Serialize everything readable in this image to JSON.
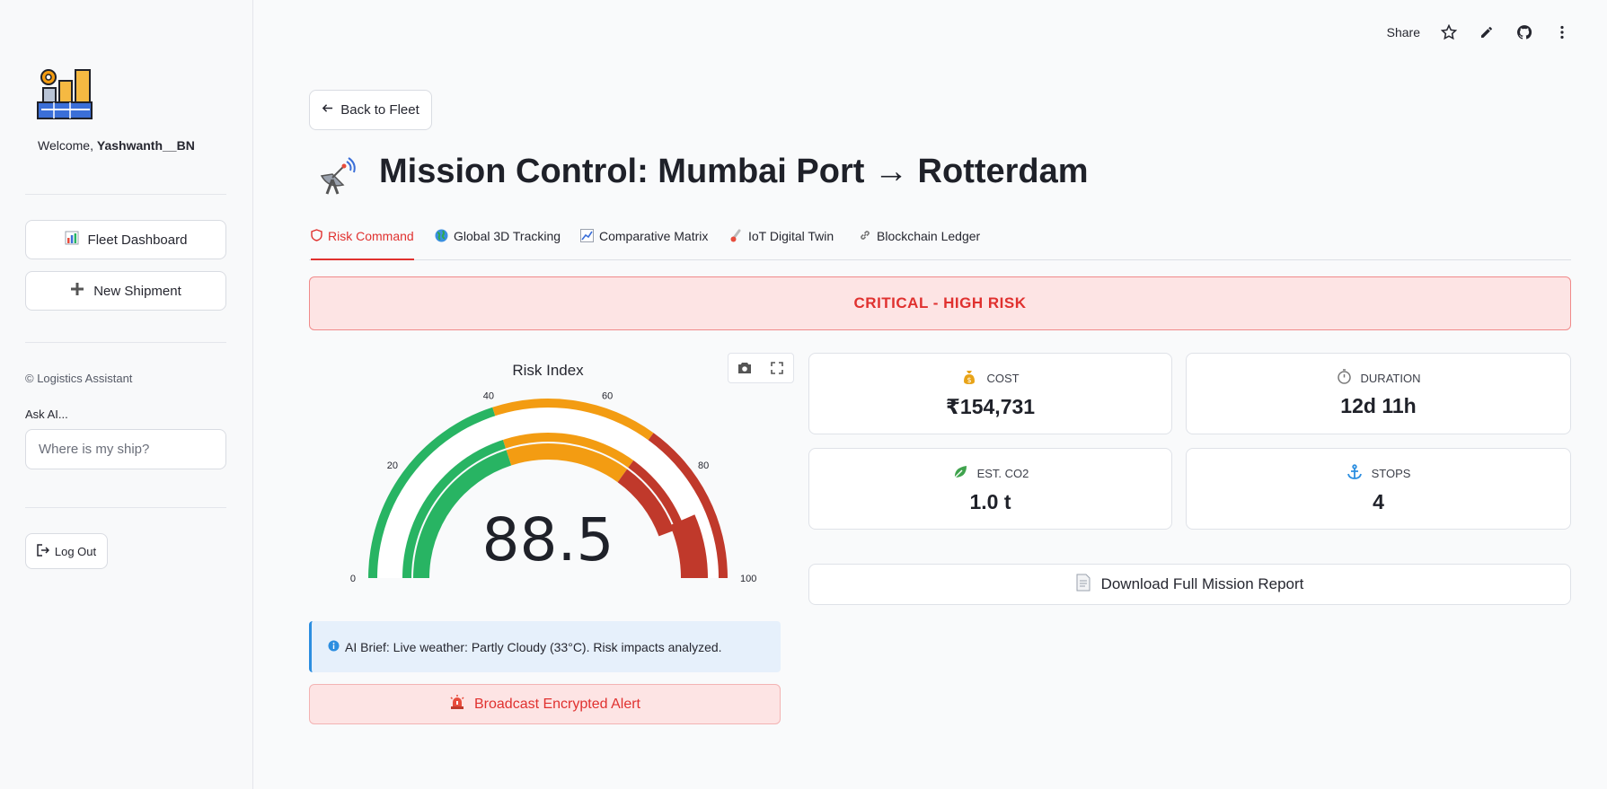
{
  "sidebar": {
    "welcome_prefix": "Welcome, ",
    "username": "Yashwanth__BN",
    "nav": [
      {
        "icon": "bar-chart-icon",
        "label": "Fleet Dashboard"
      },
      {
        "icon": "plus-icon",
        "label": "New Shipment"
      }
    ],
    "caption": "© Logistics Assistant",
    "ask_label": "Ask AI...",
    "ask_placeholder": "Where is my ship?",
    "logout_label": "Log Out"
  },
  "toolbar": {
    "share_label": "Share",
    "icons": [
      "star-icon",
      "pencil-icon",
      "github-icon",
      "more-vertical-icon"
    ]
  },
  "main": {
    "back_label": "Back to Fleet",
    "title": "Mission Control: Mumbai Port → Rotterdam",
    "tabs": [
      {
        "icon": "shield-icon",
        "label": "Risk Command",
        "active": true
      },
      {
        "icon": "globe-icon",
        "label": "Global 3D Tracking",
        "active": false
      },
      {
        "icon": "trend-chart-icon",
        "label": "Comparative Matrix",
        "active": false
      },
      {
        "icon": "thermometer-icon",
        "label": "IoT Digital Twin",
        "active": false
      },
      {
        "icon": "link-icon",
        "label": "Blockchain Ledger",
        "active": false
      }
    ],
    "risk_banner": "CRITICAL - HIGH RISK",
    "gauge": {
      "title": "Risk Index",
      "value": 88.5,
      "value_label": "88.5",
      "min": 0,
      "max": 100,
      "ticks": [
        "0",
        "20",
        "40",
        "60",
        "80",
        "100"
      ],
      "bands": [
        {
          "from": 0,
          "to": 40,
          "color": "#28b463"
        },
        {
          "from": 40,
          "to": 70,
          "color": "#f39c12"
        },
        {
          "from": 70,
          "to": 100,
          "color": "#c0392b"
        }
      ],
      "tools": [
        "camera-icon",
        "fullscreen-icon"
      ]
    },
    "metrics": [
      {
        "icon": "money-bag-icon",
        "label": "COST",
        "value": "₹154,731"
      },
      {
        "icon": "stopwatch-icon",
        "label": "DURATION",
        "value": "12d 11h"
      },
      {
        "icon": "leaf-icon",
        "label": "EST. CO2",
        "value": "1.0 t"
      },
      {
        "icon": "anchor-icon",
        "label": "STOPS",
        "value": "4"
      }
    ],
    "download_label": "Download Full Mission Report",
    "ai_brief": "AI Brief: Live weather: Partly Cloudy (33°C). Risk impacts analyzed.",
    "broadcast_label": "Broadcast Encrypted Alert"
  },
  "colors": {
    "accent_red": "#e0312f",
    "banner_bg": "#fde4e4",
    "info_blue": "#2c8ee0",
    "info_bg": "#e6f0fb"
  }
}
